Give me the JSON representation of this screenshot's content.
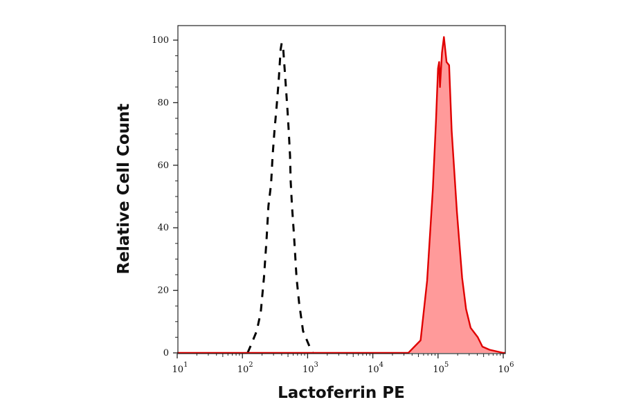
{
  "chart_data": {
    "type": "area",
    "title": "",
    "xlabel": "Lactoferrin PE",
    "ylabel": "Relative Cell Count",
    "x_scale": "log",
    "xlim": [
      10,
      1070000
    ],
    "ylim": [
      0,
      105
    ],
    "x_ticks": [
      {
        "base": "10",
        "exp": "1",
        "value": 10
      },
      {
        "base": "10",
        "exp": "2",
        "value": 100
      },
      {
        "base": "10",
        "exp": "3",
        "value": 1000
      },
      {
        "base": "10",
        "exp": "4",
        "value": 10000
      },
      {
        "base": "10",
        "exp": "5",
        "value": 100000
      },
      {
        "base": "10",
        "exp": "6",
        "value": 1000000
      }
    ],
    "y_ticks": [
      "0",
      "20",
      "40",
      "60",
      "80",
      "100"
    ],
    "grid": false,
    "series": [
      {
        "style": "dashed-line",
        "color": "#000000",
        "x": [
          120,
          132,
          166,
          191,
          214,
          234,
          251,
          275,
          290,
          310,
          335,
          360,
          385,
          400,
          420,
          457,
          490,
          513,
          537,
          550,
          575,
          617,
          676,
          741,
          851,
          1122,
          1202
        ],
        "y": [
          0,
          2,
          7,
          13,
          24,
          36,
          47,
          54,
          63,
          71,
          79,
          87,
          97,
          99,
          98,
          87,
          78,
          71,
          63,
          55,
          47,
          38,
          24,
          16,
          7,
          1,
          0
        ]
      },
      {
        "style": "filled-area",
        "color": "#e00000",
        "fill": "#ff9a9a",
        "x": [
          10,
          30000,
          35000,
          54000,
          68000,
          83000,
          93000,
          100000,
          104000,
          107000,
          115000,
          123000,
          135000,
          148000,
          162000,
          195000,
          234000,
          269000,
          316000,
          407000,
          479000,
          617000,
          1000000,
          1070000
        ],
        "y": [
          0,
          0,
          0,
          4,
          23,
          52,
          74,
          91,
          93,
          85,
          96,
          101,
          93,
          92,
          71,
          45,
          24,
          14,
          8,
          5,
          2,
          1,
          0,
          0
        ]
      }
    ]
  }
}
